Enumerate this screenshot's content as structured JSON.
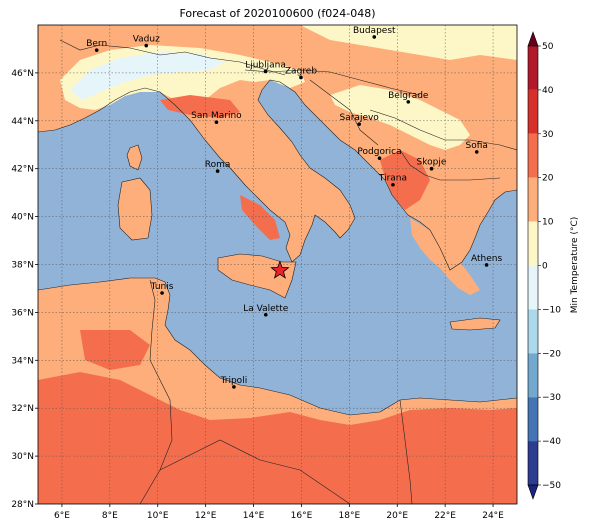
{
  "title": "Forecast of 2020100600 (f024-048)",
  "colors": {
    "sea": "#91b3d7",
    "cold": "#fdf7c7",
    "mild": "#fdae7a",
    "warm": "#f46e4e",
    "veryCold": "#e6f5fa",
    "border": "#222222",
    "grid": "#555555",
    "star": "#e8232a"
  },
  "axes": {
    "lon_range": [
      5,
      25
    ],
    "lat_range": [
      28,
      48
    ],
    "xticks": [
      "6°E",
      "8°E",
      "10°E",
      "12°E",
      "14°E",
      "16°E",
      "18°E",
      "20°E",
      "22°E",
      "24°E"
    ],
    "yticks": [
      "28°N",
      "30°N",
      "32°N",
      "34°N",
      "36°N",
      "38°N",
      "40°N",
      "42°N",
      "44°N",
      "46°N"
    ]
  },
  "cities": [
    {
      "name": "Bern",
      "lon": 7.45,
      "lat": 46.95
    },
    {
      "name": "Vaduz",
      "lon": 9.52,
      "lat": 47.14
    },
    {
      "name": "Budapest",
      "lon": 19.04,
      "lat": 47.5
    },
    {
      "name": "Ljubljana",
      "lon": 14.5,
      "lat": 46.06
    },
    {
      "name": "Zagreb",
      "lon": 15.98,
      "lat": 45.81
    },
    {
      "name": "Belgrade",
      "lon": 20.46,
      "lat": 44.79
    },
    {
      "name": "San Marino",
      "lon": 12.45,
      "lat": 43.94
    },
    {
      "name": "Sarajevo",
      "lon": 18.41,
      "lat": 43.86
    },
    {
      "name": "Sofia",
      "lon": 23.32,
      "lat": 42.7
    },
    {
      "name": "Podgorica",
      "lon": 19.26,
      "lat": 42.44
    },
    {
      "name": "Skopje",
      "lon": 21.43,
      "lat": 42.0
    },
    {
      "name": "Roma",
      "lon": 12.5,
      "lat": 41.9
    },
    {
      "name": "Tirana",
      "lon": 19.82,
      "lat": 41.33
    },
    {
      "name": "Athens",
      "lon": 23.73,
      "lat": 37.98
    },
    {
      "name": "Tunis",
      "lon": 10.18,
      "lat": 36.81
    },
    {
      "name": "La Valette",
      "lon": 14.51,
      "lat": 35.9
    },
    {
      "name": "Tripoli",
      "lon": 13.18,
      "lat": 32.89
    }
  ],
  "marker": {
    "lon": 15.1,
    "lat": 37.75
  },
  "colorbar": {
    "label": "Min Temperature (°C)",
    "ticks": [
      "50",
      "40",
      "30",
      "20",
      "10",
      "0",
      "−10",
      "−20",
      "−30",
      "−40",
      "−50"
    ],
    "colors": [
      "#67001f",
      "#b2182b",
      "#d6302b",
      "#f46e4e",
      "#fdae7a",
      "#fdf7c7",
      "#e6f5fa",
      "#abd9e9",
      "#74a9cf",
      "#4575b4",
      "#2b3c91",
      "#1a237e"
    ]
  }
}
